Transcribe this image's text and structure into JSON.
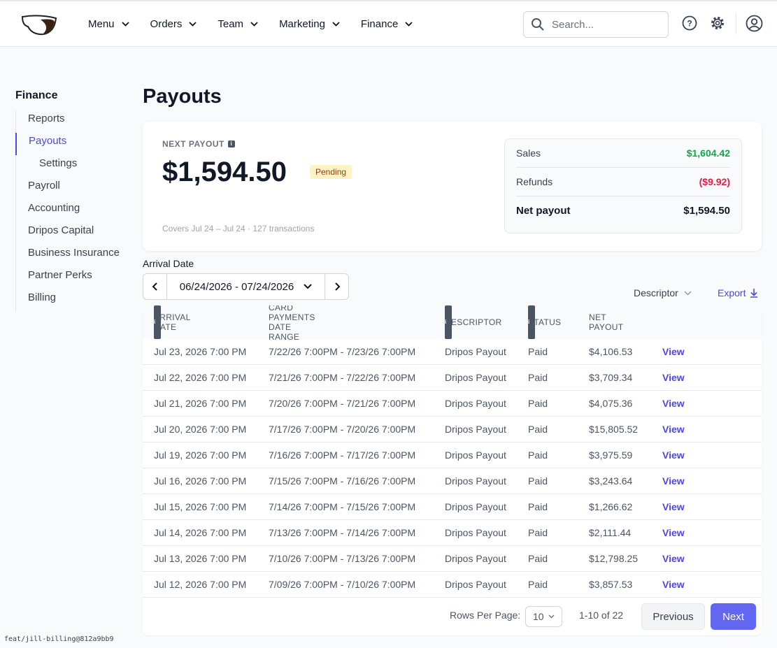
{
  "nav": {
    "items": [
      "Menu",
      "Orders",
      "Team",
      "Marketing",
      "Finance"
    ],
    "search_placeholder": "Search..."
  },
  "sidebar": {
    "title": "Finance",
    "items": [
      "Reports",
      "Payouts",
      "Settings",
      "Payroll",
      "Accounting",
      "Dripos Capital",
      "Business Insurance",
      "Partner Perks",
      "Billing"
    ]
  },
  "page_title": "Payouts",
  "summary": {
    "label": "NEXT PAYOUT",
    "amount": "$1,594.50",
    "badge": "Pending",
    "caption": "Covers Jul 24 – Jul 24 · 127 transactions",
    "breakdown": [
      [
        "Sales",
        "$1,604.42"
      ],
      [
        "Refunds",
        "($9.92)"
      ],
      [
        "Net payout",
        "$1,594.50"
      ]
    ]
  },
  "filters": {
    "label": "Arrival Date",
    "range": "06/24/2026 - 07/24/2026",
    "descriptor": "Descriptor",
    "export": "Export"
  },
  "table": {
    "columns": [
      "ARRIVAL DATE",
      "CARD PAYMENTS DATE RANGE",
      "DESCRIPTOR",
      "STATUS",
      "NET PAYOUT"
    ],
    "rows": [
      [
        "Jul 23, 2026 7:00 PM",
        "7/22/26 7:00PM - 7/23/26 7:00PM",
        "Dripos Payout",
        "Paid",
        "$4,106.53",
        "View"
      ],
      [
        "Jul 22, 2026 7:00 PM",
        "7/21/26 7:00PM - 7/22/26 7:00PM",
        "Dripos Payout",
        "Paid",
        "$3,709.34",
        "View"
      ],
      [
        "Jul 21, 2026 7:00 PM",
        "7/20/26 7:00PM - 7/21/26 7:00PM",
        "Dripos Payout",
        "Paid",
        "$4,075.36",
        "View"
      ],
      [
        "Jul 20, 2026 7:00 PM",
        "7/17/26 7:00PM - 7/20/26 7:00PM",
        "Dripos Payout",
        "Paid",
        "$15,805.52",
        "View"
      ],
      [
        "Jul 19, 2026 7:00 PM",
        "7/16/26 7:00PM - 7/17/26 7:00PM",
        "Dripos Payout",
        "Paid",
        "$3,975.59",
        "View"
      ],
      [
        "Jul 16, 2026 7:00 PM",
        "7/15/26 7:00PM - 7/16/26 7:00PM",
        "Dripos Payout",
        "Paid",
        "$3,243.64",
        "View"
      ],
      [
        "Jul 15, 2026 7:00 PM",
        "7/14/26 7:00PM - 7/15/26 7:00PM",
        "Dripos Payout",
        "Paid",
        "$1,266.62",
        "View"
      ],
      [
        "Jul 14, 2026 7:00 PM",
        "7/13/26 7:00PM - 7/14/26 7:00PM",
        "Dripos Payout",
        "Paid",
        "$2,111.44",
        "View"
      ],
      [
        "Jul 13, 2026 7:00 PM",
        "7/10/26 7:00PM - 7/13/26 7:00PM",
        "Dripos Payout",
        "Paid",
        "$12,798.25",
        "View"
      ],
      [
        "Jul 12, 2026 7:00 PM",
        "7/09/26 7:00PM - 7/10/26 7:00PM",
        "Dripos Payout",
        "Paid",
        "$3,857.53",
        "View"
      ]
    ]
  },
  "pagination": {
    "rows_label": "Rows Per Page:",
    "rows_value": "10",
    "range": "1-10 of 22",
    "previous": "Previous",
    "next": "Next"
  },
  "version": "feat/jill-billing@812a9bb9"
}
